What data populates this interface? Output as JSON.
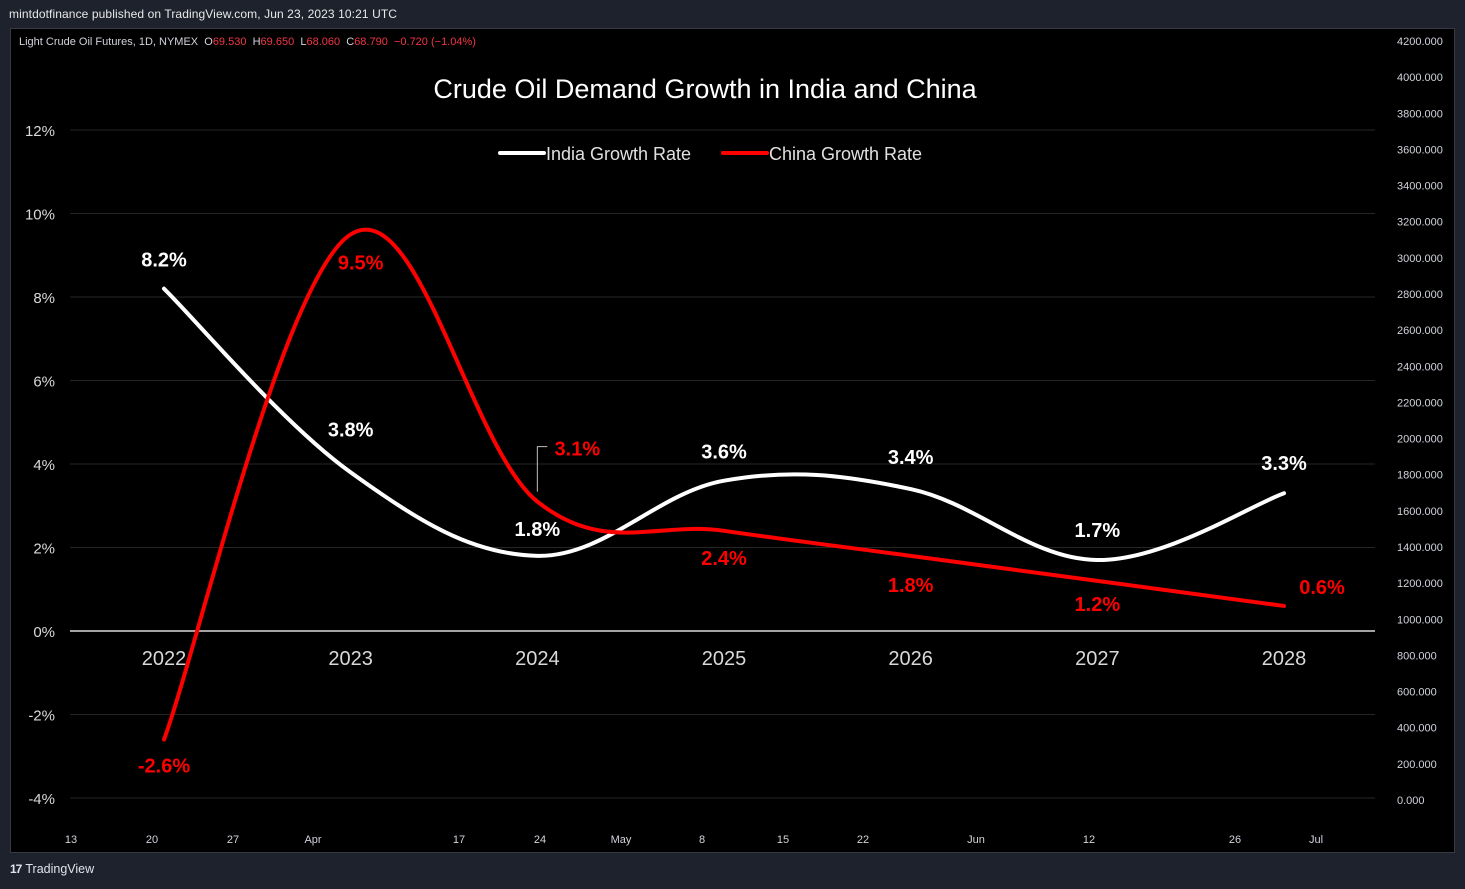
{
  "header": {
    "published": "mintdotfinance published on TradingView.com, Jun 23, 2023 10:21 UTC"
  },
  "symbol": {
    "name": "Light Crude Oil Futures, 1D, NYMEX",
    "o_label": "O",
    "o_value": "69.530",
    "h_label": "H",
    "h_value": "69.650",
    "l_label": "L",
    "l_value": "68.060",
    "c_label": "C",
    "c_value": "68.790",
    "change": "−0.720 (−1.04%)"
  },
  "price_axis": [
    "4200.000",
    "4000.000",
    "3800.000",
    "3600.000",
    "3400.000",
    "3200.000",
    "3000.000",
    "2800.000",
    "2600.000",
    "2400.000",
    "2200.000",
    "2000.000",
    "1800.000",
    "1600.000",
    "1400.000",
    "1200.000",
    "1000.000",
    "800.000",
    "600.000",
    "400.000",
    "200.000",
    "0.000"
  ],
  "time_axis": [
    {
      "label": "13",
      "x": 71
    },
    {
      "label": "20",
      "x": 152
    },
    {
      "label": "27",
      "x": 233
    },
    {
      "label": "Apr",
      "x": 313
    },
    {
      "label": "17",
      "x": 459
    },
    {
      "label": "24",
      "x": 540
    },
    {
      "label": "May",
      "x": 621
    },
    {
      "label": "8",
      "x": 702
    },
    {
      "label": "15",
      "x": 783
    },
    {
      "label": "22",
      "x": 863
    },
    {
      "label": "Jun",
      "x": 976
    },
    {
      "label": "12",
      "x": 1089
    },
    {
      "label": "26",
      "x": 1235
    },
    {
      "label": "Jul",
      "x": 1316
    }
  ],
  "footer": {
    "brand": "TradingView",
    "logo": "17"
  },
  "colors": {
    "india": "#ffffff",
    "china": "#ff0000",
    "background": "#000000"
  },
  "chart_data": {
    "type": "line",
    "title": "Crude Oil Demand Growth in India and China",
    "categories": [
      "2022",
      "2023",
      "2024",
      "2025",
      "2026",
      "2027",
      "2028"
    ],
    "series": [
      {
        "name": "India Growth Rate",
        "color": "#ffffff",
        "values": [
          8.2,
          3.8,
          1.8,
          3.6,
          3.4,
          1.7,
          3.3
        ],
        "labels": [
          "8.2%",
          "3.8%",
          "1.8%",
          "3.6%",
          "3.4%",
          "1.7%",
          "3.3%"
        ]
      },
      {
        "name": "China Growth Rate",
        "color": "#ff0000",
        "values": [
          -2.6,
          9.5,
          3.1,
          2.4,
          1.8,
          1.2,
          0.6
        ],
        "labels": [
          "-2.6%",
          "9.5%",
          "3.1%",
          "2.4%",
          "1.8%",
          "1.2%",
          "0.6%"
        ]
      }
    ],
    "y_ticks": [
      "12%",
      "10%",
      "8%",
      "6%",
      "4%",
      "2%",
      "0%",
      "-2%",
      "-4%"
    ],
    "ylim": [
      -4,
      12
    ],
    "grid": true,
    "legend": "top-center"
  }
}
